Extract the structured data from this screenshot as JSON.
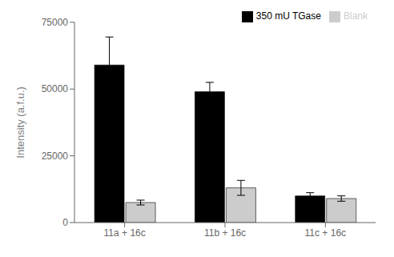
{
  "chart_data": {
    "type": "bar",
    "categories": [
      "11a + 16c",
      "11b + 16c",
      "11c + 16c"
    ],
    "series": [
      {
        "name": "350 mU TGase",
        "color": "#000000",
        "values": [
          59000,
          49000,
          10000
        ],
        "errors": [
          10500,
          3500,
          1200
        ]
      },
      {
        "name": "Blank",
        "color": "#cccccc",
        "values": [
          7500,
          13000,
          9000
        ],
        "errors": [
          900,
          2800,
          1000
        ]
      }
    ],
    "y_label": "Intensity (a.f.u.)",
    "ylim": [
      0,
      75000
    ],
    "yticks": [
      0,
      25000,
      50000,
      75000
    ],
    "legend": "upper right",
    "grid": false
  }
}
